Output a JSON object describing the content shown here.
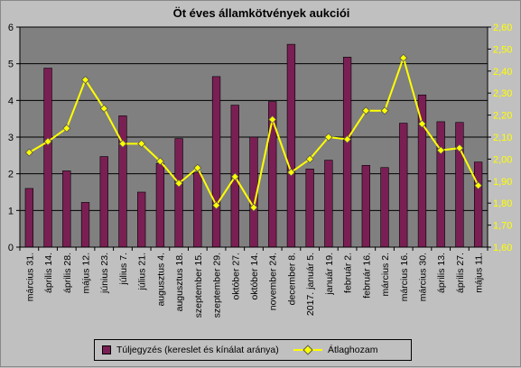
{
  "chart_data": {
    "type": "bar+line",
    "title": "Öt éves államkötvények aukciói",
    "categories": [
      "március 31.",
      "április 14.",
      "április 28.",
      "május 12.",
      "június 23.",
      "július 7.",
      "július 21.",
      "augusztus 4.",
      "augusztus 18.",
      "szeptember 15.",
      "szeptember 29.",
      "október 27.",
      "október 14.",
      "november 24.",
      "december 8.",
      "2017. január 5.",
      "január 19.",
      "február 2.",
      "február 16.",
      "március 2.",
      "március 16.",
      "március 30.",
      "április 13.",
      "április 27.",
      "május 11."
    ],
    "series": [
      {
        "name": "Túljegyzés (kereslet és kínálat aránya)",
        "type": "bar",
        "axis": "left",
        "color": "#7a1f54",
        "values": [
          1.6,
          4.88,
          2.08,
          1.22,
          2.47,
          3.58,
          1.5,
          2.28,
          2.96,
          2.04,
          4.65,
          3.87,
          3.0,
          3.97,
          5.53,
          2.13,
          2.37,
          5.18,
          2.23,
          2.17,
          3.38,
          4.15,
          3.42,
          3.4,
          2.32
        ]
      },
      {
        "name": "Átlaghozam",
        "type": "line",
        "axis": "right",
        "color": "#ffff00",
        "values": [
          2.03,
          2.08,
          2.14,
          2.36,
          2.23,
          2.07,
          2.07,
          1.99,
          1.89,
          1.96,
          1.79,
          1.92,
          1.78,
          2.18,
          1.94,
          2.0,
          2.1,
          2.09,
          2.22,
          2.22,
          2.46,
          2.16,
          2.04,
          2.05,
          1.88
        ]
      }
    ],
    "yleft": {
      "min": 0,
      "max": 6,
      "ticks": [
        "0",
        "1",
        "2",
        "3",
        "4",
        "5",
        "6"
      ]
    },
    "yright": {
      "min": 1.6,
      "max": 2.6,
      "ticks": [
        "1,60",
        "1,70",
        "1,80",
        "1,90",
        "2,00",
        "2,10",
        "2,20",
        "2,30",
        "2,40",
        "2,50",
        "2,60"
      ]
    },
    "grid": true,
    "legend": "bottom",
    "colors": {
      "plot_background": "#808080",
      "page_background": "#c0c0c0",
      "grid": "#000000"
    }
  }
}
